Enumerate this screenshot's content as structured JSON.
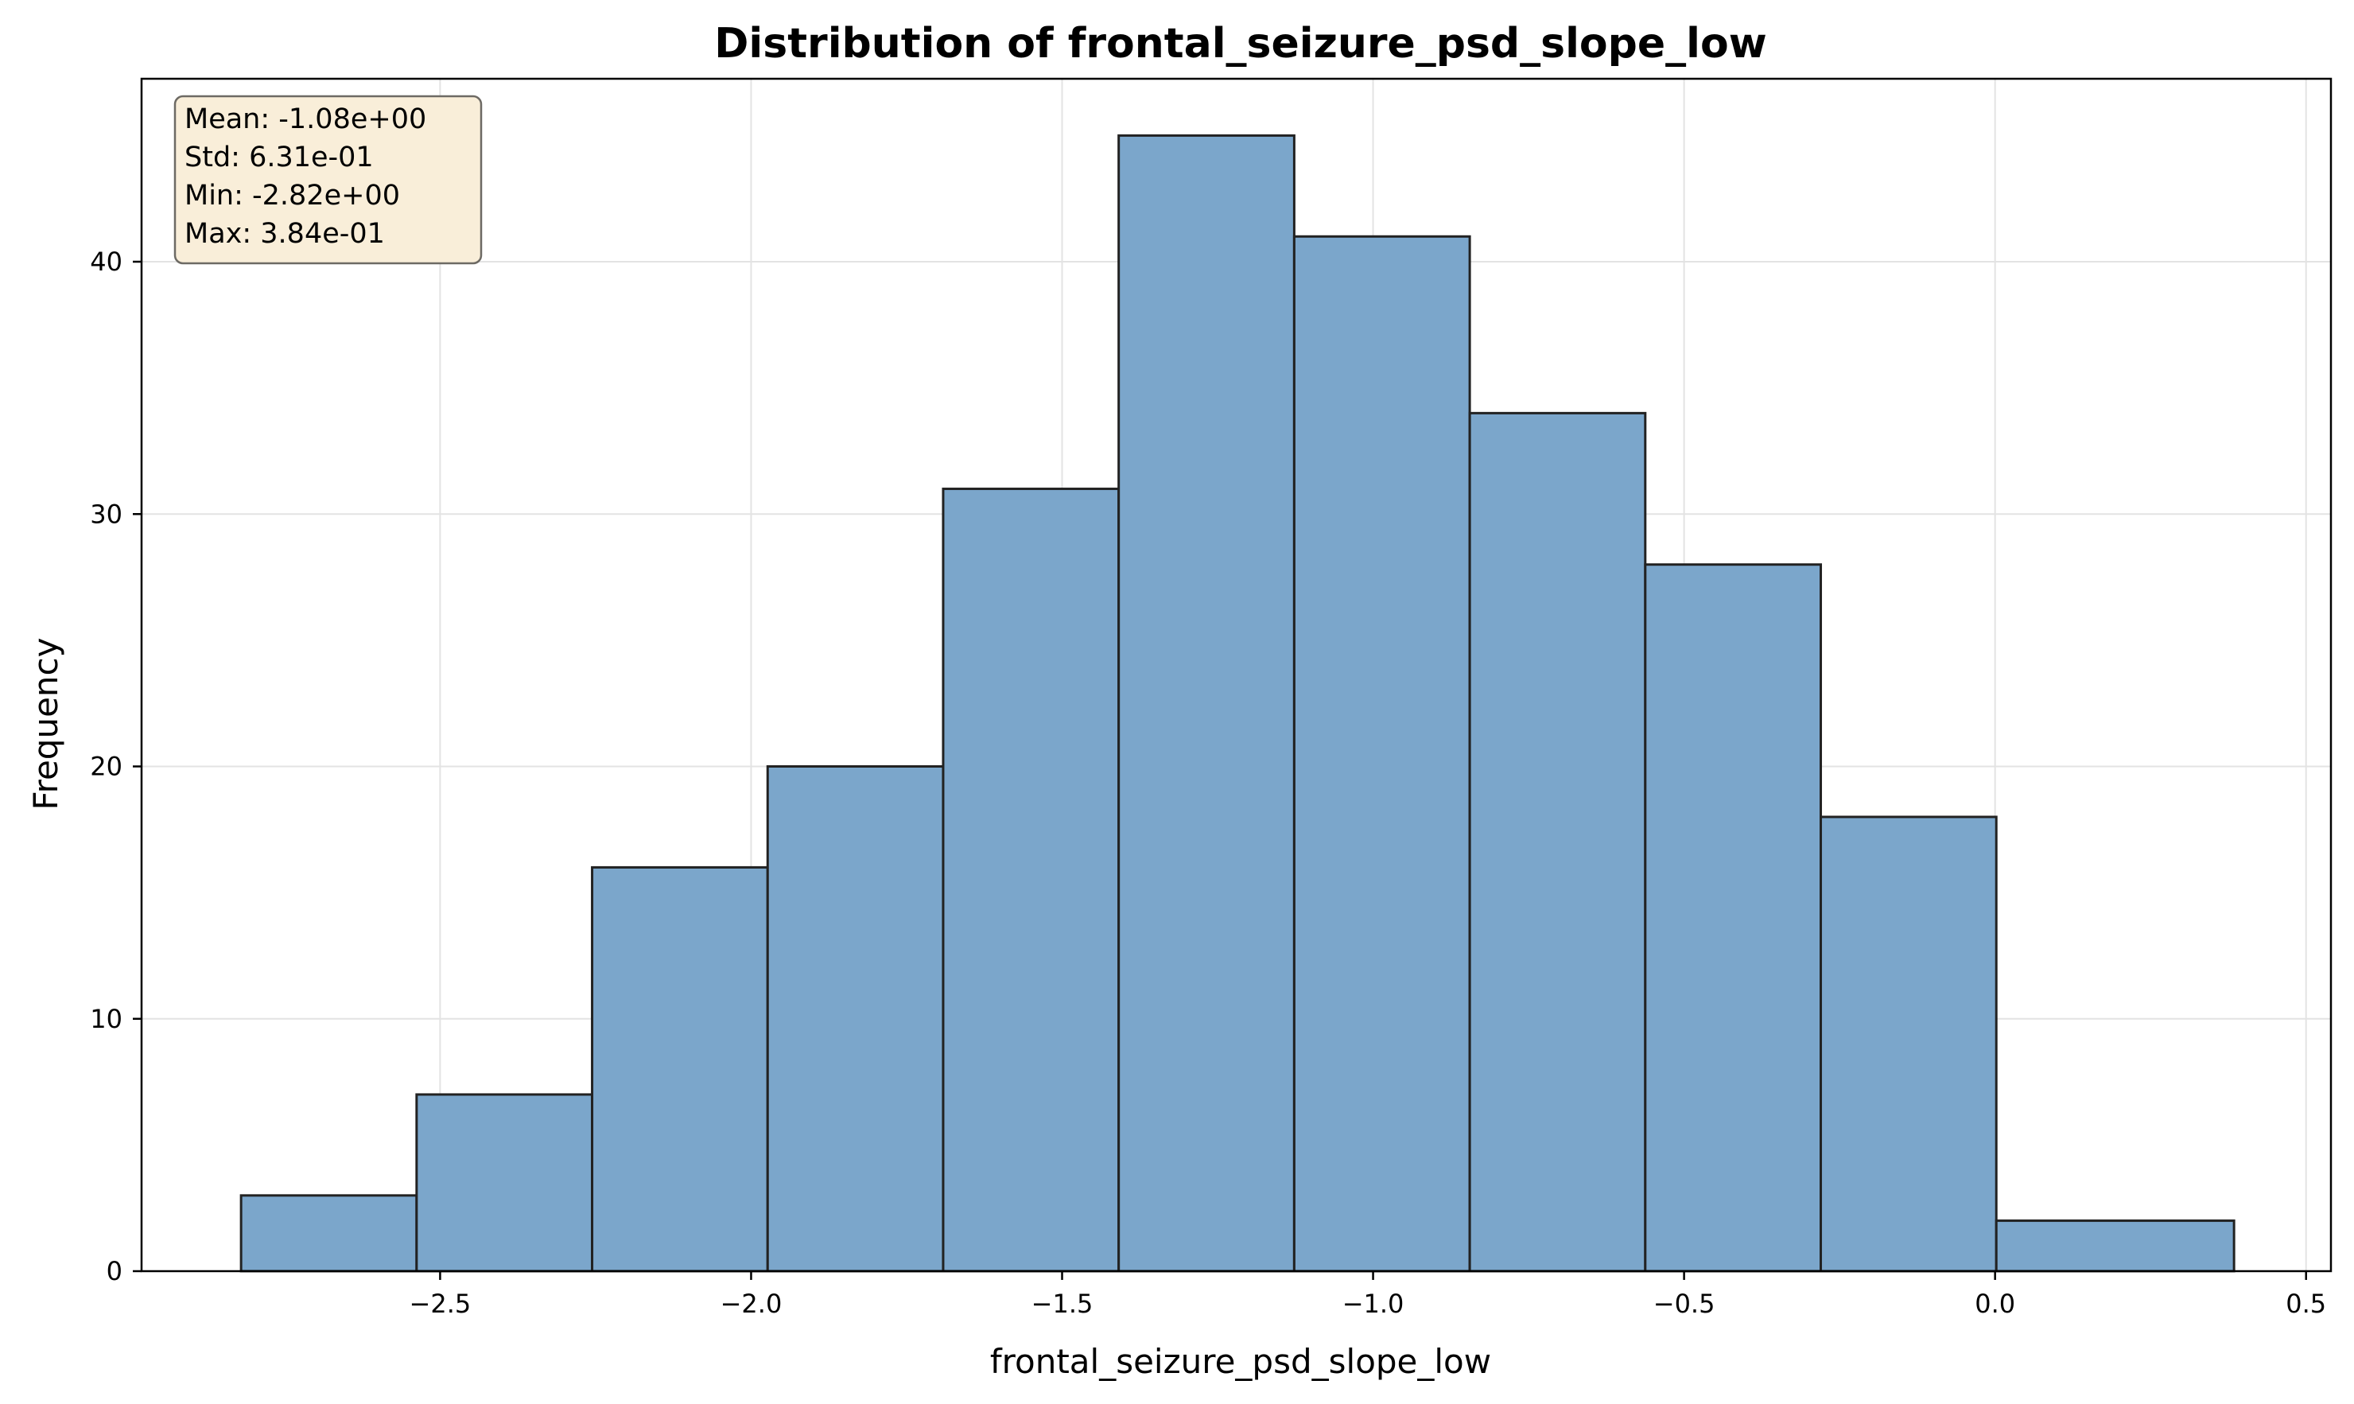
{
  "chart_data": {
    "type": "bar",
    "title": "Distribution of frontal_seizure_psd_slope_low",
    "xlabel": "frontal_seizure_psd_slope_low",
    "ylabel": "Frequency",
    "xlim": [
      -2.98,
      0.54
    ],
    "ylim": [
      0,
      47.25
    ],
    "grid": true,
    "bin_edges": [
      -2.82,
      -2.5378,
      -2.2556,
      -1.9734,
      -1.6912,
      -1.409,
      -1.1268,
      -0.8446,
      -0.5624,
      -0.2802,
      0.002,
      0.3842
    ],
    "values": [
      3,
      7,
      16,
      20,
      31,
      45,
      41,
      34,
      28,
      18,
      2
    ],
    "bar_color": "#7ba6cb",
    "edge_color": "#222222",
    "x_ticks": [
      {
        "value": -2.5,
        "label": "−2.5"
      },
      {
        "value": -2.0,
        "label": "−2.0"
      },
      {
        "value": -1.5,
        "label": "−1.5"
      },
      {
        "value": -1.0,
        "label": "−1.0"
      },
      {
        "value": -0.5,
        "label": "−0.5"
      },
      {
        "value": 0.0,
        "label": "0.0"
      },
      {
        "value": 0.5,
        "label": "0.5"
      }
    ],
    "y_ticks": [
      {
        "value": 0,
        "label": "0"
      },
      {
        "value": 10,
        "label": "10"
      },
      {
        "value": 20,
        "label": "20"
      },
      {
        "value": 30,
        "label": "30"
      },
      {
        "value": 40,
        "label": "40"
      }
    ],
    "stats_box": {
      "lines": [
        "Mean: -1.08e+00",
        "Std: 6.31e-01",
        "Min: -2.82e+00",
        "Max: 3.84e-01"
      ],
      "placement": "top-left",
      "background": "#f9eed9",
      "border": "#6d6a64"
    }
  }
}
